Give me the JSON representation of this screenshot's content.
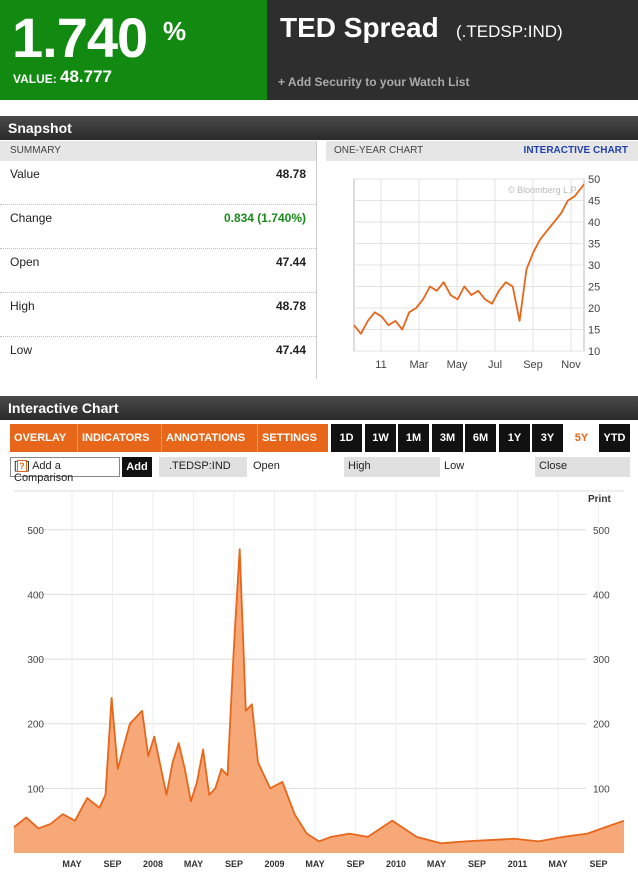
{
  "header": {
    "pct_value": "1.740",
    "pct_sign": "%",
    "value_label": "VALUE:",
    "value_number": "48.777",
    "security_name": "TED Spread",
    "ticker": "(.TEDSP:IND)",
    "watch_link": "+ Add Security to your Watch List",
    "green_bg": "#128a12"
  },
  "snapshot": {
    "title": "Snapshot",
    "summary_header": "SUMMARY",
    "rows": [
      {
        "label": "Value",
        "value": "48.78"
      },
      {
        "label": "Change",
        "value": "0.834 (1.740%)"
      },
      {
        "label": "Open",
        "value": "47.44"
      },
      {
        "label": "High",
        "value": "48.78"
      },
      {
        "label": "Low",
        "value": "47.44"
      }
    ],
    "one_year_header": "ONE-YEAR CHART",
    "interactive_link": "INTERACTIVE CHART"
  },
  "interactive": {
    "title": "Interactive Chart",
    "toolbar": [
      "OVERLAY ▾",
      "INDICATORS ▾",
      "ANNOTATIONS ▾",
      "SETTINGS ▾"
    ],
    "ranges": [
      "1D",
      "1W",
      "1M",
      "3M",
      "6M",
      "1Y",
      "3Y",
      "5Y",
      "YTD"
    ],
    "active_range": "5Y",
    "compare_q": "?",
    "compare_label": "Add a Comparison",
    "add_label": "Add",
    "ticker_label": ".TEDSP:IND",
    "open_label": "Open",
    "high_label": "High",
    "low_label": "Low",
    "close_label": "Close",
    "print_label": "Print",
    "accent": "#e8661a"
  },
  "chart_data": [
    {
      "type": "line",
      "title": "",
      "watermark": "© Bloomberg L.P.",
      "xlabel": "",
      "ylabel": "",
      "ylim": [
        10,
        50
      ],
      "yticks": [
        10,
        15,
        20,
        25,
        30,
        35,
        40,
        45,
        50
      ],
      "xticks": [
        "11",
        "Mar",
        "May",
        "Jul",
        "Sep",
        "Nov"
      ],
      "grid": true,
      "color": "#e8661a",
      "x": [
        0,
        0.03,
        0.06,
        0.09,
        0.12,
        0.15,
        0.18,
        0.21,
        0.24,
        0.27,
        0.3,
        0.33,
        0.36,
        0.39,
        0.42,
        0.45,
        0.48,
        0.51,
        0.54,
        0.57,
        0.6,
        0.63,
        0.66,
        0.69,
        0.72,
        0.75,
        0.78,
        0.81,
        0.84,
        0.87,
        0.9,
        0.93,
        0.96,
        1.0
      ],
      "y": [
        16,
        14,
        17,
        19,
        18,
        16,
        17,
        15,
        19,
        20,
        22,
        25,
        24,
        26,
        23,
        22,
        25,
        23,
        24,
        22,
        21,
        24,
        26,
        25,
        17,
        29,
        33,
        36,
        38,
        40,
        42,
        45,
        46,
        48.78
      ]
    },
    {
      "type": "area",
      "title": "",
      "xlabel": "",
      "ylabel": "",
      "ylim": [
        0,
        560
      ],
      "yticks": [
        100,
        200,
        300,
        400,
        500
      ],
      "xticks": [
        "MAY",
        "SEP",
        "2008",
        "MAY",
        "SEP",
        "2009",
        "MAY",
        "SEP",
        "2010",
        "MAY",
        "SEP",
        "2011",
        "MAY",
        "SEP"
      ],
      "grid": true,
      "color": "#e8661a",
      "fill": "#f7a878",
      "x": [
        0,
        0.02,
        0.04,
        0.06,
        0.08,
        0.1,
        0.12,
        0.14,
        0.15,
        0.16,
        0.17,
        0.19,
        0.21,
        0.22,
        0.23,
        0.25,
        0.26,
        0.27,
        0.28,
        0.29,
        0.3,
        0.31,
        0.32,
        0.33,
        0.34,
        0.35,
        0.36,
        0.37,
        0.38,
        0.39,
        0.4,
        0.42,
        0.44,
        0.46,
        0.48,
        0.5,
        0.52,
        0.55,
        0.58,
        0.62,
        0.66,
        0.7,
        0.74,
        0.78,
        0.82,
        0.86,
        0.9,
        0.94,
        0.97,
        1.0
      ],
      "y": [
        40,
        55,
        38,
        45,
        60,
        50,
        85,
        70,
        90,
        240,
        130,
        200,
        220,
        150,
        180,
        90,
        140,
        170,
        130,
        80,
        110,
        160,
        90,
        100,
        130,
        120,
        310,
        470,
        220,
        230,
        140,
        100,
        110,
        60,
        30,
        18,
        25,
        30,
        25,
        50,
        25,
        15,
        18,
        20,
        22,
        18,
        25,
        30,
        40,
        50
      ]
    }
  ]
}
